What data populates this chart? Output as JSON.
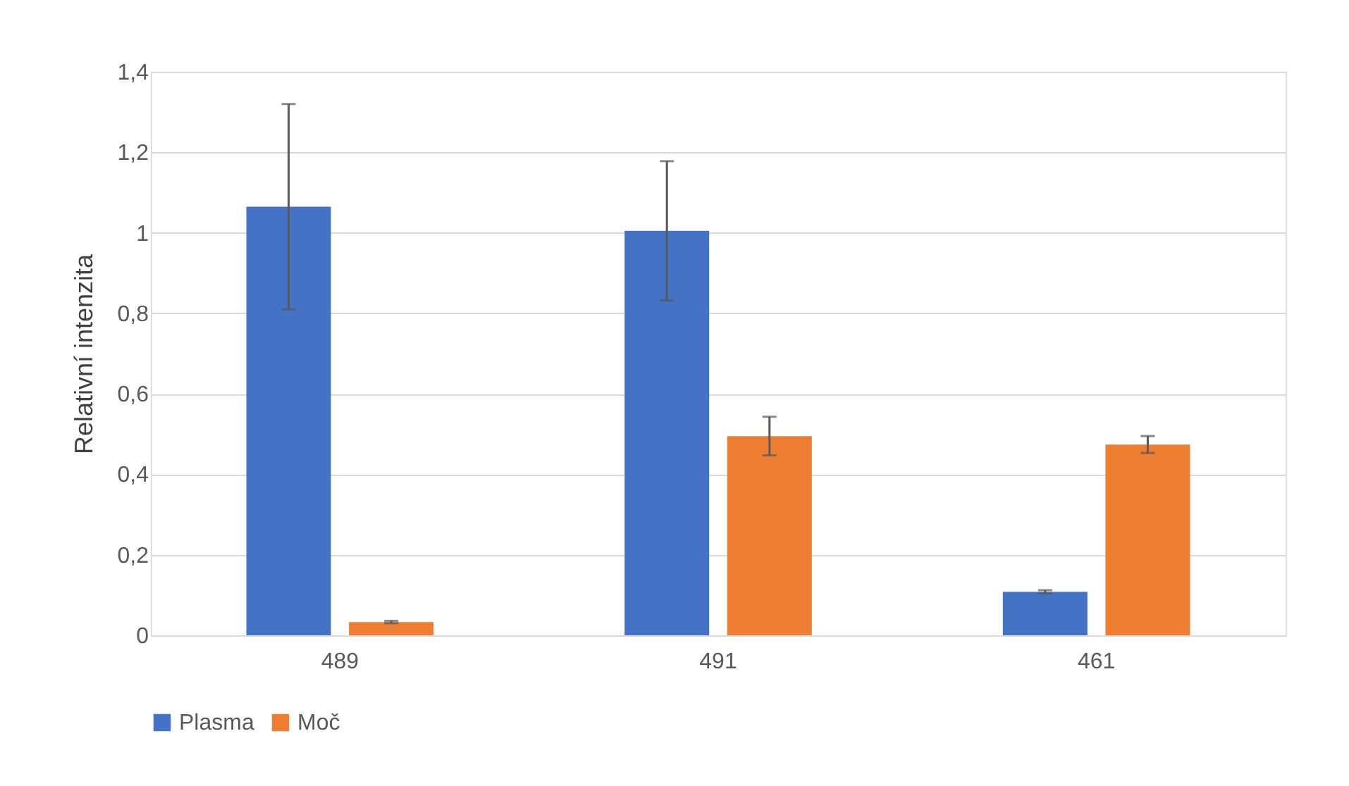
{
  "chart_data": {
    "type": "bar",
    "ylabel": "Relativní intenzita",
    "categories": [
      "489",
      "491",
      "461"
    ],
    "series": [
      {
        "name": "Plasma",
        "color": "#4472c4",
        "values": [
          1.065,
          1.005,
          0.108
        ],
        "errors": [
          0.255,
          0.173,
          0.004
        ]
      },
      {
        "name": "Moč",
        "color": "#ed7d31",
        "values": [
          0.033,
          0.495,
          0.474
        ],
        "errors": [
          0.003,
          0.048,
          0.021
        ]
      }
    ],
    "ylim": [
      0,
      1.4
    ],
    "yticks": [
      {
        "value": 0,
        "label": "0"
      },
      {
        "value": 0.2,
        "label": "0,2"
      },
      {
        "value": 0.4,
        "label": "0,4"
      },
      {
        "value": 0.6,
        "label": "0,6"
      },
      {
        "value": 0.8,
        "label": "0,8"
      },
      {
        "value": 1,
        "label": "1"
      },
      {
        "value": 1.2,
        "label": "1,2"
      },
      {
        "value": 1.4,
        "label": "1,4"
      }
    ],
    "grid": "y",
    "legend": "bottom"
  }
}
